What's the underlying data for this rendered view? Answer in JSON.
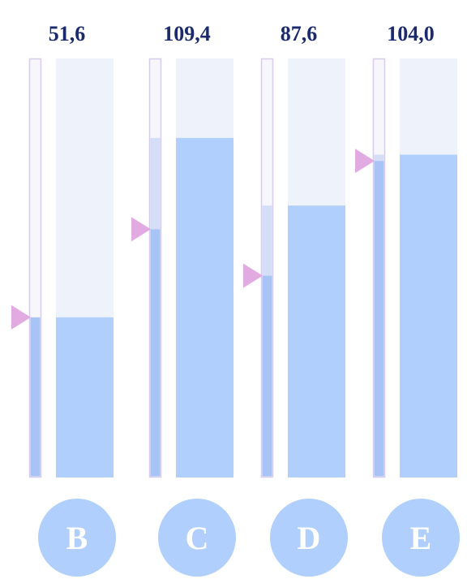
{
  "chart_data": {
    "type": "bar",
    "categories": [
      "B",
      "C",
      "D",
      "E"
    ],
    "values": [
      51.6,
      109.4,
      87.6,
      104.0
    ],
    "value_labels": [
      "51,6",
      "109,4",
      "87,6",
      "104,0"
    ],
    "markers": [
      51.6,
      80.0,
      65.0,
      102.0
    ],
    "ylim": [
      0,
      135
    ],
    "title": "",
    "xlabel": "",
    "ylabel": "",
    "grid": false,
    "legend": "none"
  },
  "colors": {
    "background_bar": "#edf2fb",
    "fill_bar": "#b0cffd",
    "thin_bar_border": "#d7cdea",
    "thin_bar_fill": "#f7f6fc",
    "thin_bar_level": "#a8c4f5",
    "thin_bar_overlay": "#c8d6f4",
    "marker": "#e1abe2",
    "value_text": "#1a2a6c",
    "badge": "#b0cffd",
    "badge_text": "#ffffff"
  }
}
